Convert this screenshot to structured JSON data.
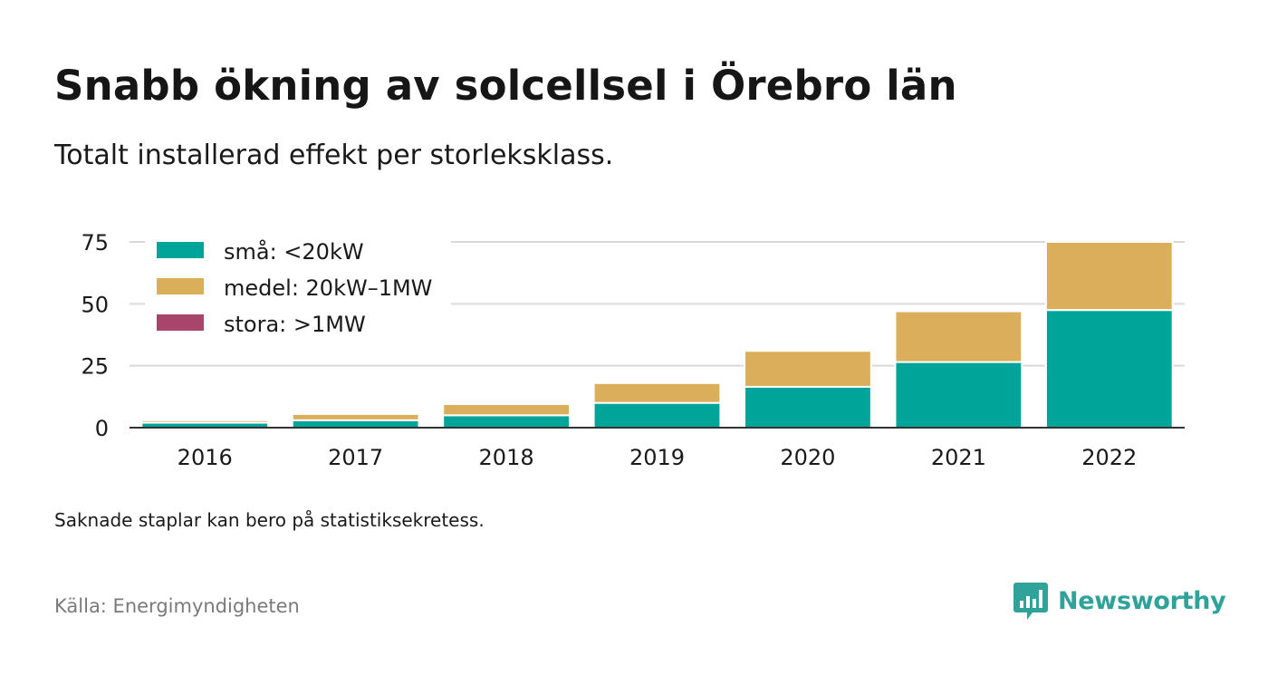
{
  "title": "Snabb ökning av solcellsel i Örebro län",
  "subtitle": "Totalt installerad effekt per storleksklass.",
  "note": "Saknade staplar kan bero på statistiksekretess.",
  "source": "Källa: Energimyndigheten",
  "brand": {
    "name": "Newsworthy",
    "color": "#2fa39a"
  },
  "chart_data": {
    "type": "bar",
    "stacked": true,
    "categories": [
      "2016",
      "2017",
      "2018",
      "2019",
      "2020",
      "2021",
      "2022"
    ],
    "series": [
      {
        "name": "små: <20kW",
        "color": "#00a499",
        "values": [
          2,
          3,
          5,
          10,
          16.5,
          26.5,
          47.5
        ]
      },
      {
        "name": "medel: 20kW–1MW",
        "color": "#dbae5c",
        "values": [
          1,
          2.5,
          4.5,
          8,
          14.5,
          20.5,
          27.5
        ]
      },
      {
        "name": "stora: >1MW",
        "color": "#a8456c",
        "values": [
          0,
          0,
          0,
          0,
          0,
          0,
          0
        ]
      }
    ],
    "y_ticks": [
      0,
      25,
      50,
      75
    ],
    "ylim": [
      0,
      75
    ],
    "grid": true,
    "legend_position": "top-left"
  }
}
